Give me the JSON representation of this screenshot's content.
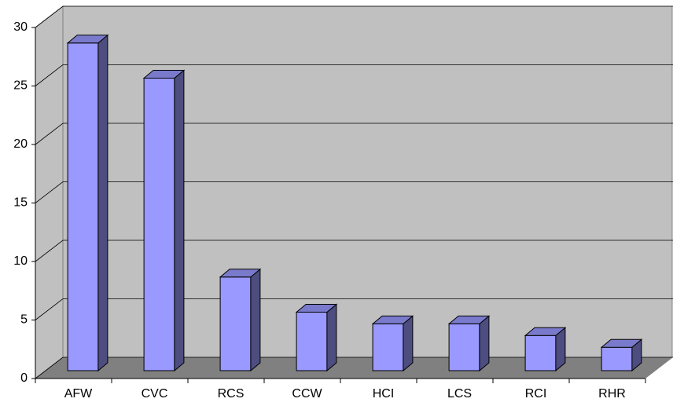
{
  "chart_data": {
    "type": "bar",
    "categories": [
      "AFW",
      "CVC",
      "RCS",
      "CCW",
      "HCI",
      "LCS",
      "RCI",
      "RHR"
    ],
    "values": [
      28,
      25,
      8,
      5,
      4,
      4,
      3,
      2
    ],
    "color": "#9999ff",
    "ylim": [
      0,
      30
    ],
    "yticks": [
      0,
      5,
      10,
      15,
      20,
      25,
      30
    ],
    "grid": true
  }
}
